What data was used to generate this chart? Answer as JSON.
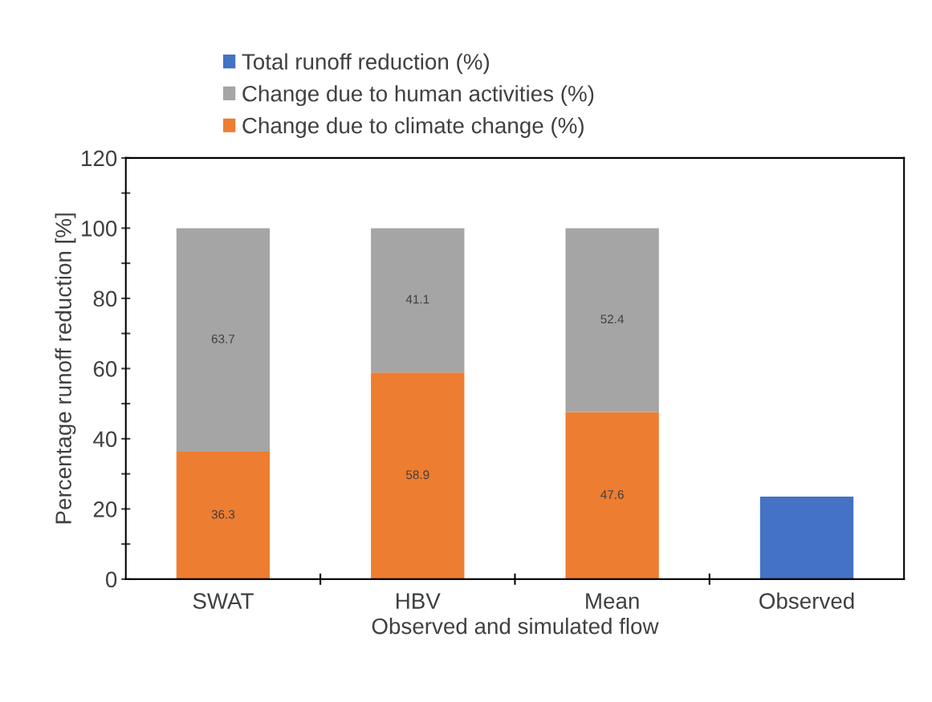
{
  "chart_data": {
    "type": "bar",
    "stacked": true,
    "xlabel": "Observed and simulated flow",
    "ylabel": "Percentage runoff reduction [%]",
    "categories": [
      "SWAT",
      "HBV",
      "Mean",
      "Observed"
    ],
    "series": [
      {
        "name": "Change due to climate change (%)",
        "color": "#ed7d31",
        "values": [
          36.3,
          58.9,
          47.6,
          null
        ],
        "value_labels": [
          "36.3",
          "58.9",
          "47.6",
          null
        ]
      },
      {
        "name": "Change due to human activities (%)",
        "color": "#a5a5a5",
        "values": [
          63.7,
          41.1,
          52.4,
          null
        ],
        "value_labels": [
          "63.7",
          "41.1",
          "52.4",
          null
        ]
      },
      {
        "name": "Total runoff reduction (%)",
        "color": "#4472c4",
        "values": [
          null,
          null,
          null,
          23.5
        ]
      }
    ],
    "ylim": [
      0,
      120
    ],
    "yticks": [
      0,
      {
        "value": 10,
        "label": null
      },
      20,
      {
        "value": 30,
        "label": null
      },
      40,
      {
        "value": 50,
        "label": null
      },
      60,
      {
        "value": 70,
        "label": null
      },
      80,
      {
        "value": 90,
        "label": null
      },
      100,
      {
        "value": 110,
        "label": null
      },
      120
    ],
    "legend": "top",
    "grid": false
  }
}
